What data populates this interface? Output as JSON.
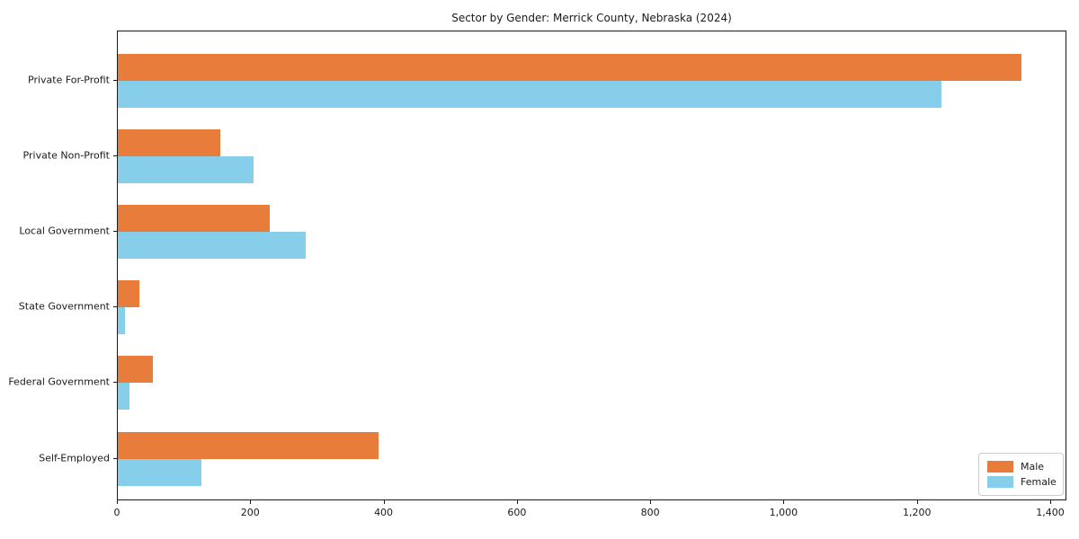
{
  "chart_data": {
    "type": "bar",
    "orientation": "horizontal",
    "title": "Sector by Gender: Merrick County, Nebraska (2024)",
    "xlabel": "",
    "ylabel": "",
    "categories": [
      "Private For-Profit",
      "Private Non-Profit",
      "Local Government",
      "State Government",
      "Federal Government",
      "Self-Employed"
    ],
    "series": [
      {
        "name": "Male",
        "color": "#e87d3b",
        "values": [
          1356,
          154,
          228,
          32,
          53,
          391
        ]
      },
      {
        "name": "Female",
        "color": "#87ceeb",
        "values": [
          1236,
          203,
          282,
          11,
          17,
          126
        ]
      }
    ],
    "xlim": [
      0,
      1400
    ],
    "xticks": [
      0,
      200,
      400,
      600,
      800,
      1000,
      1200,
      1400
    ],
    "xtick_labels": [
      "0",
      "200",
      "400",
      "600",
      "800",
      "1,000",
      "1,200",
      "1,400"
    ],
    "grid": false,
    "legend_position": "lower right",
    "legend_entries": [
      "Male",
      "Female"
    ]
  }
}
